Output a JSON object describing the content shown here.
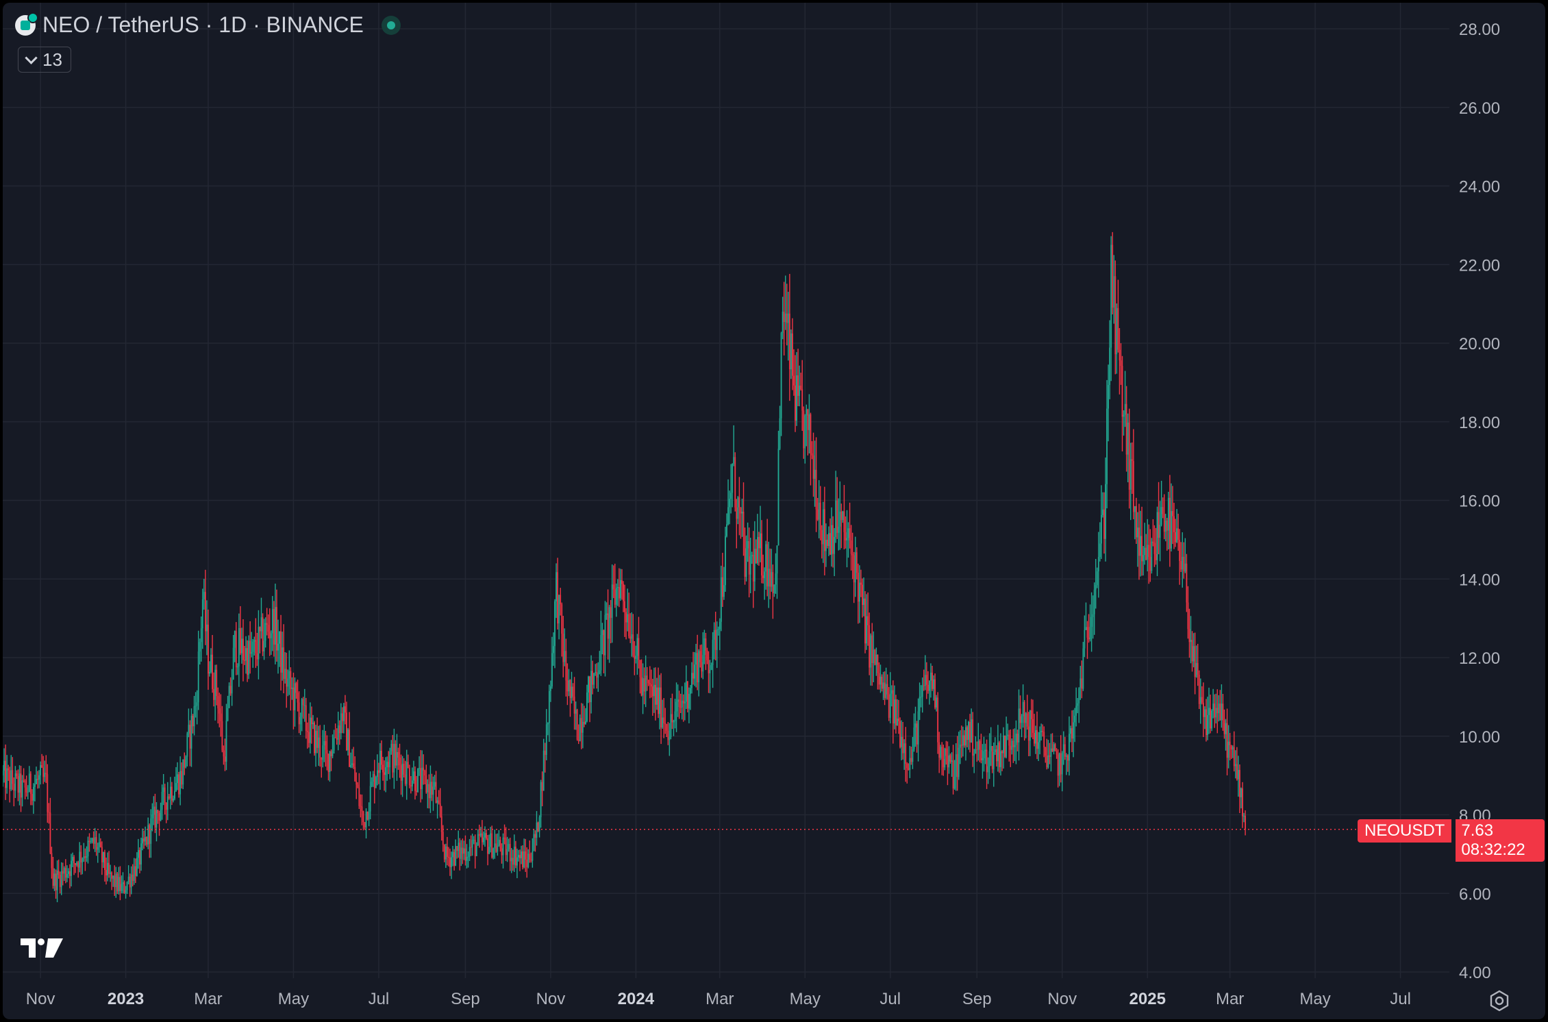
{
  "header": {
    "title": "NEO / TetherUS · 1D · BINANCE",
    "indicator_count": "13",
    "market_status_color": "#22ab94"
  },
  "icons": {
    "symbol": "neo-logo-icon",
    "collapse": "chevron-down-icon",
    "brand": "tradingview-logo-icon",
    "settings": "settings-icon"
  },
  "price_tag": {
    "symbol": "NEOUSDT",
    "price": "7.63",
    "countdown": "08:32:22",
    "color": "#f23645"
  },
  "colors": {
    "background": "#161a25",
    "up": "#22ab94",
    "down": "#f23645",
    "grid": "#232733",
    "axis_text": "#b2b5be"
  },
  "chart_data": {
    "type": "candlestick",
    "title": "",
    "xlabel": "",
    "ylabel": "",
    "ylim": [
      4,
      28
    ],
    "y_ticks": [
      "4.00",
      "6.00",
      "8.00",
      "10.00",
      "12.00",
      "14.00",
      "16.00",
      "18.00",
      "20.00",
      "22.00",
      "24.00",
      "26.00",
      "28.00"
    ],
    "x_ticks": [
      {
        "date": "2022-11-01",
        "label": "Nov",
        "bold": false
      },
      {
        "date": "2023-01-01",
        "label": "2023",
        "bold": true
      },
      {
        "date": "2023-03-01",
        "label": "Mar",
        "bold": false
      },
      {
        "date": "2023-05-01",
        "label": "May",
        "bold": false
      },
      {
        "date": "2023-07-01",
        "label": "Jul",
        "bold": false
      },
      {
        "date": "2023-09-01",
        "label": "Sep",
        "bold": false
      },
      {
        "date": "2023-11-01",
        "label": "Nov",
        "bold": false
      },
      {
        "date": "2024-01-01",
        "label": "2024",
        "bold": true
      },
      {
        "date": "2024-03-01",
        "label": "Mar",
        "bold": false
      },
      {
        "date": "2024-05-01",
        "label": "May",
        "bold": false
      },
      {
        "date": "2024-07-01",
        "label": "Jul",
        "bold": false
      },
      {
        "date": "2024-09-01",
        "label": "Sep",
        "bold": false
      },
      {
        "date": "2024-11-01",
        "label": "Nov",
        "bold": false
      },
      {
        "date": "2025-01-01",
        "label": "2025",
        "bold": true
      },
      {
        "date": "2025-03-01",
        "label": "Mar",
        "bold": false
      },
      {
        "date": "2025-05-01",
        "label": "May",
        "bold": false
      },
      {
        "date": "2025-07-01",
        "label": "Jul",
        "bold": false
      }
    ],
    "x_range": [
      "2022-10-05",
      "2025-08-05"
    ],
    "last_price": 7.63,
    "series": [
      {
        "type": "close_path",
        "points": [
          [
            "2022-10-05",
            9.0
          ],
          [
            "2022-10-20",
            8.6
          ],
          [
            "2022-11-01",
            8.9
          ],
          [
            "2022-11-05",
            8.8
          ],
          [
            "2022-11-10",
            6.3
          ],
          [
            "2022-11-20",
            6.6
          ],
          [
            "2022-12-01",
            7.0
          ],
          [
            "2022-12-10",
            7.3
          ],
          [
            "2022-12-20",
            6.4
          ],
          [
            "2022-12-30",
            6.1
          ],
          [
            "2023-01-10",
            6.8
          ],
          [
            "2023-01-20",
            7.8
          ],
          [
            "2023-02-01",
            8.6
          ],
          [
            "2023-02-10",
            9.0
          ],
          [
            "2023-02-20",
            10.8
          ],
          [
            "2023-02-25",
            13.5
          ],
          [
            "2023-03-01",
            12.0
          ],
          [
            "2023-03-08",
            11.0
          ],
          [
            "2023-03-12",
            9.4
          ],
          [
            "2023-03-20",
            12.3
          ],
          [
            "2023-04-01",
            12.0
          ],
          [
            "2023-04-10",
            12.6
          ],
          [
            "2023-04-17",
            12.9
          ],
          [
            "2023-04-25",
            11.5
          ],
          [
            "2023-05-10",
            10.3
          ],
          [
            "2023-05-25",
            9.4
          ],
          [
            "2023-06-05",
            10.6
          ],
          [
            "2023-06-10",
            9.6
          ],
          [
            "2023-06-20",
            7.8
          ],
          [
            "2023-06-30",
            9.3
          ],
          [
            "2023-07-10",
            9.5
          ],
          [
            "2023-07-25",
            9.0
          ],
          [
            "2023-08-10",
            8.6
          ],
          [
            "2023-08-18",
            6.9
          ],
          [
            "2023-09-01",
            7.1
          ],
          [
            "2023-09-15",
            7.3
          ],
          [
            "2023-10-01",
            7.1
          ],
          [
            "2023-10-15",
            6.8
          ],
          [
            "2023-10-22",
            7.5
          ],
          [
            "2023-10-30",
            10.5
          ],
          [
            "2023-11-05",
            13.8
          ],
          [
            "2023-11-12",
            11.5
          ],
          [
            "2023-11-20",
            10.2
          ],
          [
            "2023-12-01",
            11.4
          ],
          [
            "2023-12-10",
            12.6
          ],
          [
            "2023-12-20",
            14.0
          ],
          [
            "2023-12-31",
            12.4
          ],
          [
            "2024-01-05",
            11.3
          ],
          [
            "2024-01-15",
            11.0
          ],
          [
            "2024-01-25",
            10.2
          ],
          [
            "2024-02-05",
            11.0
          ],
          [
            "2024-02-15",
            12.0
          ],
          [
            "2024-02-25",
            12.0
          ],
          [
            "2024-03-05",
            14.6
          ],
          [
            "2024-03-10",
            16.8
          ],
          [
            "2024-03-20",
            14.3
          ],
          [
            "2024-04-01",
            14.6
          ],
          [
            "2024-04-10",
            14.0
          ],
          [
            "2024-04-15",
            21.0
          ],
          [
            "2024-04-25",
            18.4
          ],
          [
            "2024-05-05",
            17.4
          ],
          [
            "2024-05-15",
            15.0
          ],
          [
            "2024-05-25",
            15.5
          ],
          [
            "2024-06-05",
            14.5
          ],
          [
            "2024-06-15",
            12.4
          ],
          [
            "2024-06-25",
            11.2
          ],
          [
            "2024-07-05",
            10.5
          ],
          [
            "2024-07-15",
            9.3
          ],
          [
            "2024-07-25",
            11.2
          ],
          [
            "2024-08-01",
            11.4
          ],
          [
            "2024-08-05",
            9.8
          ],
          [
            "2024-08-15",
            9.0
          ],
          [
            "2024-08-25",
            10.2
          ],
          [
            "2024-09-05",
            9.4
          ],
          [
            "2024-09-20",
            9.7
          ],
          [
            "2024-10-05",
            10.5
          ],
          [
            "2024-10-15",
            9.9
          ],
          [
            "2024-10-25",
            9.4
          ],
          [
            "2024-11-01",
            9.3
          ],
          [
            "2024-11-10",
            10.3
          ],
          [
            "2024-11-20",
            13.0
          ],
          [
            "2024-12-01",
            15.6
          ],
          [
            "2024-12-06",
            21.6
          ],
          [
            "2024-12-12",
            19.2
          ],
          [
            "2024-12-20",
            16.6
          ],
          [
            "2024-12-28",
            14.2
          ],
          [
            "2025-01-05",
            14.6
          ],
          [
            "2025-01-12",
            15.9
          ],
          [
            "2025-01-20",
            15.0
          ],
          [
            "2025-01-28",
            13.9
          ],
          [
            "2025-02-03",
            11.8
          ],
          [
            "2025-02-10",
            10.3
          ],
          [
            "2025-02-20",
            10.8
          ],
          [
            "2025-03-01",
            9.6
          ],
          [
            "2025-03-08",
            8.8
          ],
          [
            "2025-03-12",
            7.63
          ]
        ]
      }
    ]
  }
}
